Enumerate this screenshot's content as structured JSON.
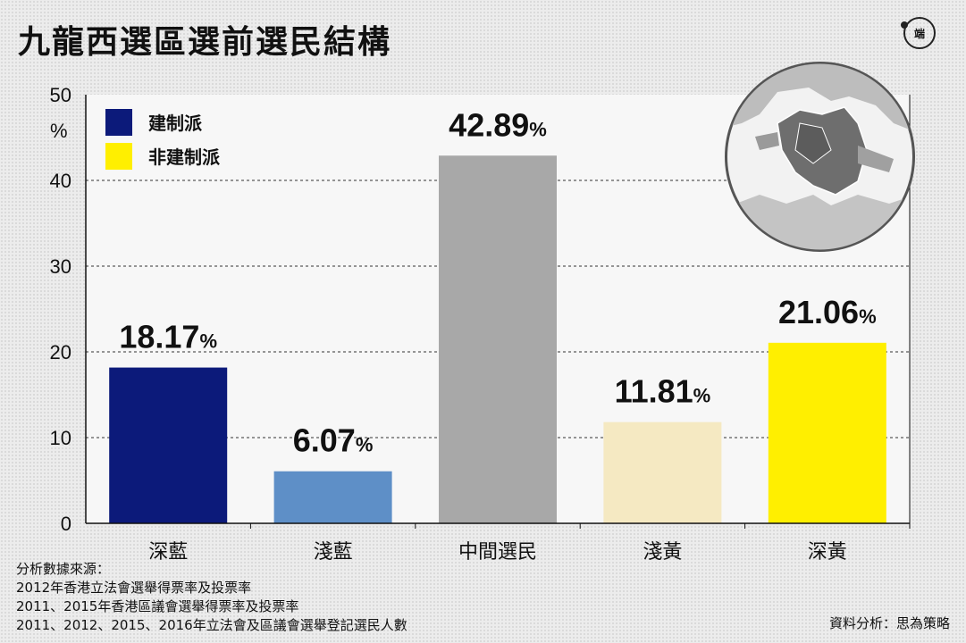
{
  "title": "九龍西選區選前選民結構",
  "logo_text": "端",
  "chart_data": {
    "type": "bar",
    "categories": [
      "深藍",
      "淺藍",
      "中間選民",
      "淺黃",
      "深黃"
    ],
    "values": [
      18.17,
      6.07,
      42.89,
      11.81,
      21.06
    ],
    "value_labels": [
      "18.17",
      "6.07",
      "42.89",
      "11.81",
      "21.06"
    ],
    "value_suffix": "%",
    "colors": [
      "#0c1a7a",
      "#5e8fc7",
      "#a8a8a8",
      "#f5e9c2",
      "#ffef00"
    ],
    "ylim": [
      0,
      50
    ],
    "yticks": [
      "0",
      "10",
      "20",
      "30",
      "40",
      "50"
    ],
    "ylabel": "%",
    "grid": true,
    "legend": {
      "placement": "top-left",
      "items": [
        {
          "label": "建制派",
          "color": "#0c1a7a"
        },
        {
          "label": "非建制派",
          "color": "#ffef00"
        }
      ]
    }
  },
  "sources": {
    "heading": "分析數據來源：",
    "lines": [
      "2012年香港立法會選舉得票率及投票率",
      "2011、2015年香港區議會選舉得票率及投票率",
      "2011、2012、2015、2016年立法會及區議會選舉登記選民人數"
    ]
  },
  "credit": "資料分析：思為策略"
}
